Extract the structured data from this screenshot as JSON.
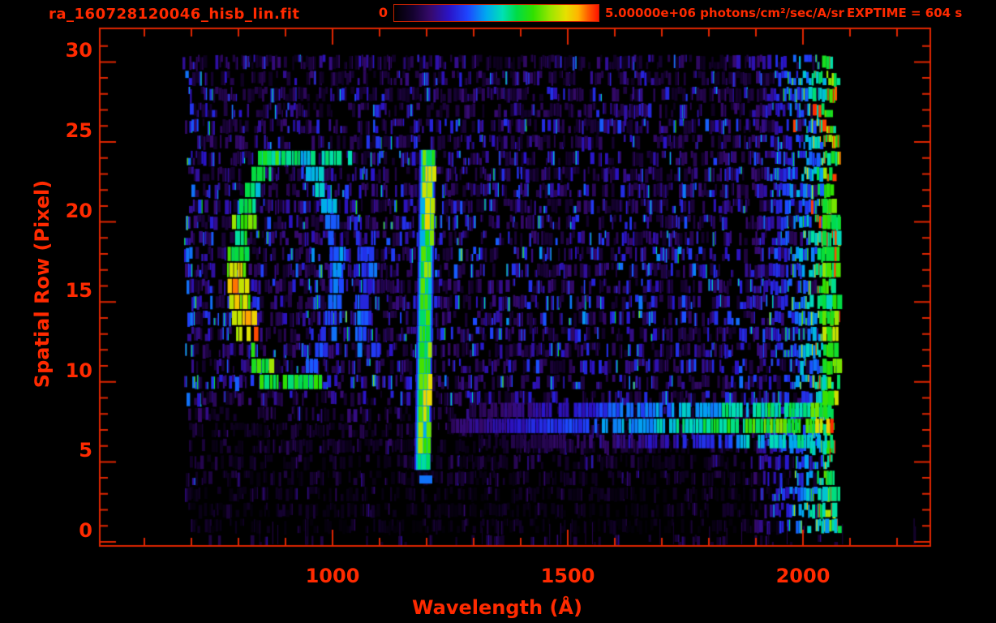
{
  "header": {
    "title": "ra_160728120046_hisb_lin.fit",
    "exptime_label": "EXPTIME = 604 s"
  },
  "colors": {
    "background": "#000000",
    "axis": "#e02600",
    "text": "#ff2a00"
  },
  "chart_data": {
    "type": "heatmap",
    "title": "ra_160728120046_hisb_lin.fit",
    "xlabel": "Wavelength (Å)",
    "ylabel": "Spatial Row (Pixel)",
    "x_ticks": [
      1000,
      1500,
      2000
    ],
    "x_minor_step": 100,
    "x_minor_range": [
      600,
      2200
    ],
    "y_ticks": [
      0,
      5,
      10,
      15,
      20,
      25,
      30
    ],
    "y_minor_step": 1,
    "xlim": [
      505,
      2271
    ],
    "ylim": [
      -0.25,
      32.1
    ],
    "rows": 31,
    "data_wavelength_range": [
      681,
      2078
    ],
    "exptime_label": "EXPTIME = 604 s",
    "colorbar": {
      "min_label": "0",
      "max_label": "5.00000e+06 photons/cm²/sec/A/sr",
      "min_value": 0,
      "max_value": 5000000,
      "units": "photons/cm2/sec/A/sr",
      "stops": [
        {
          "pos": 0.0,
          "color": "#000000"
        },
        {
          "pos": 0.09,
          "color": "#14022e"
        },
        {
          "pos": 0.18,
          "color": "#360a6e"
        },
        {
          "pos": 0.27,
          "color": "#2a14c8"
        },
        {
          "pos": 0.36,
          "color": "#1e46ff"
        },
        {
          "pos": 0.45,
          "color": "#00a8f0"
        },
        {
          "pos": 0.53,
          "color": "#00e0b4"
        },
        {
          "pos": 0.6,
          "color": "#00dc46"
        },
        {
          "pos": 0.68,
          "color": "#30e000"
        },
        {
          "pos": 0.76,
          "color": "#96e600"
        },
        {
          "pos": 0.84,
          "color": "#e6e000"
        },
        {
          "pos": 0.9,
          "color": "#ffb400"
        },
        {
          "pos": 0.95,
          "color": "#ff5a00"
        },
        {
          "pos": 1.0,
          "color": "#ff1400"
        }
      ]
    },
    "row_background_intensity": [
      0.03,
      0.1,
      0.13,
      0.15,
      0.17,
      0.2,
      0.22,
      0.22,
      0.26,
      0.4,
      0.52,
      0.48,
      0.44,
      0.48,
      0.55,
      0.52,
      0.48,
      0.52,
      0.56,
      0.48,
      0.52,
      0.48,
      0.52,
      0.44,
      0.48,
      0.44,
      0.48,
      0.4,
      0.44,
      0.38,
      0.34
    ],
    "features": [
      {
        "name": "airglow-ring",
        "shape": "elliptical-annulus",
        "center_wavelength": 900,
        "center_row": 17,
        "rx_wavelength": 107,
        "ry_rows": 7,
        "row_range": [
          10,
          24
        ],
        "brightest_side": "left",
        "left_arc_color": "green-yellow",
        "right_arc_color": "blue"
      },
      {
        "name": "lyman-alpha-emission-line",
        "wavelength": 1216,
        "row_range": [
          5,
          24
        ],
        "core_color": "green",
        "edge_color": "cyan-blue"
      },
      {
        "name": "continuum-spectrum-band",
        "wavelength_range": [
          1250,
          2075
        ],
        "row_range": [
          5.3,
          8.3
        ],
        "gradient": "purple-blue to cyan to green to yellow",
        "red_hotspot_wavelength": 2065
      },
      {
        "name": "right-edge-bright-column",
        "wavelength_range": [
          2042,
          2078
        ],
        "row_range": [
          1,
          21
        ],
        "color": "green with red spots"
      },
      {
        "name": "right-noise-zone",
        "wavelength_range": [
          1890,
          2078
        ],
        "description": "dense blue-cyan-green vertical streaks, occasional red"
      }
    ],
    "seed": 1607
  }
}
